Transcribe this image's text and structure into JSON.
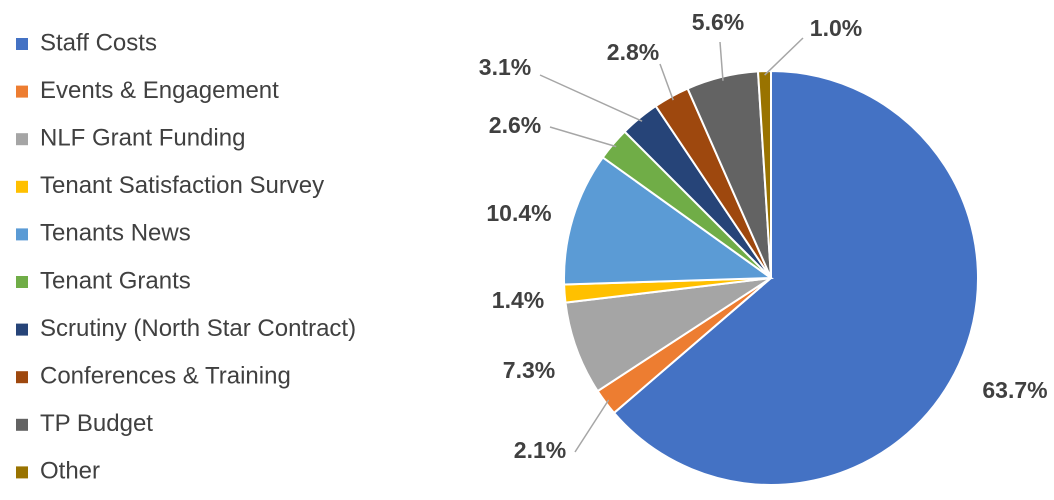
{
  "chart_data": {
    "type": "pie",
    "categories": [
      "Staff Costs",
      "Events & Engagement",
      "NLF Grant Funding",
      "Tenant Satisfaction Survey",
      "Tenants News",
      "Tenant Grants",
      "Scrutiny (North Star Contract)",
      "Conferences & Training",
      "TP Budget",
      "Other"
    ],
    "values": [
      63.7,
      2.1,
      7.3,
      1.4,
      10.4,
      2.6,
      3.1,
      2.8,
      5.6,
      1.0
    ],
    "value_labels": [
      "63.7%",
      "2.1%",
      "7.3%",
      "1.4%",
      "10.4%",
      "2.6%",
      "3.1%",
      "2.8%",
      "5.6%",
      "1.0%"
    ],
    "colors": [
      "#4472c4",
      "#ed7d31",
      "#a5a5a5",
      "#ffc000",
      "#5b9bd5",
      "#70ad47",
      "#264478",
      "#9e480e",
      "#636363",
      "#997300"
    ],
    "legend": "left"
  }
}
